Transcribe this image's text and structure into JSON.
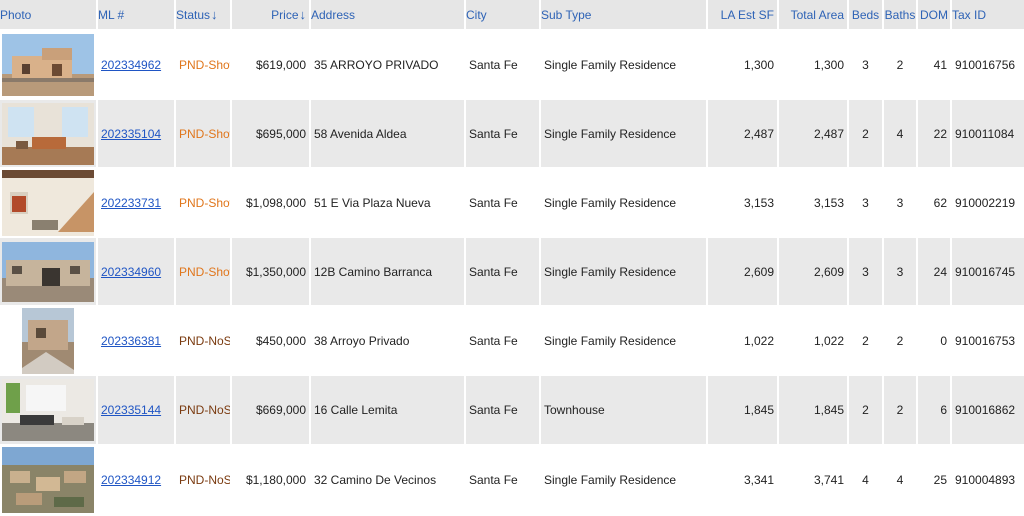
{
  "columns": {
    "photo": "Photo",
    "ml": "ML #",
    "status": "Status",
    "price": "Price",
    "address": "Address",
    "city": "City",
    "subtype": "Sub Type",
    "la_est_sf": "LA Est SF",
    "total_area": "Total Area",
    "beds": "Beds",
    "baths": "Baths",
    "dom": "DOM",
    "tax_id": "Tax ID"
  },
  "sort_icons": {
    "status": "arrow-down-icon",
    "price": "arrow-down-icon"
  },
  "colors": {
    "link": "#1f55c4",
    "status_showing": "#e0761c",
    "status_noshow": "#7a3a0f",
    "row_alt": "#e9e9e9"
  },
  "rows": [
    {
      "photo_icon": "house-photo-exterior-adobe",
      "ml": "202334962",
      "status": "PND-Show",
      "price": "$619,000",
      "address": "35 ARROYO PRIVADO",
      "city": "Santa Fe",
      "subtype": "Single Family Residence",
      "la_est_sf": "1,300",
      "total_area": "1,300",
      "beds": "3",
      "baths": "2",
      "dom": "41",
      "tax_id": "910016756"
    },
    {
      "photo_icon": "house-photo-interior-living",
      "ml": "202335104",
      "status": "PND-Show",
      "price": "$695,000",
      "address": "58 Avenida Aldea",
      "city": "Santa Fe",
      "subtype": "Single Family Residence",
      "la_est_sf": "2,487",
      "total_area": "2,487",
      "beds": "2",
      "baths": "4",
      "dom": "22",
      "tax_id": "910011084"
    },
    {
      "photo_icon": "house-photo-interior-stairs",
      "ml": "202233731",
      "status": "PND-Show",
      "price": "$1,098,000",
      "address": "51 E Via Plaza Nueva",
      "city": "Santa Fe",
      "subtype": "Single Family Residence",
      "la_est_sf": "3,153",
      "total_area": "3,153",
      "beds": "3",
      "baths": "3",
      "dom": "62",
      "tax_id": "910002219"
    },
    {
      "photo_icon": "house-photo-exterior-gate",
      "ml": "202334960",
      "status": "PND-Show",
      "price": "$1,350,000",
      "address": "12B Camino Barranca",
      "city": "Santa Fe",
      "subtype": "Single Family Residence",
      "la_est_sf": "2,609",
      "total_area": "2,609",
      "beds": "3",
      "baths": "3",
      "dom": "24",
      "tax_id": "910016745"
    },
    {
      "photo_icon": "house-photo-construction",
      "ml": "202336381",
      "status": "PND-NoShow",
      "price": "$450,000",
      "address": "38 Arroyo Privado",
      "city": "Santa Fe",
      "subtype": "Single Family Residence",
      "la_est_sf": "1,022",
      "total_area": "1,022",
      "beds": "2",
      "baths": "2",
      "dom": "0",
      "tax_id": "910016753"
    },
    {
      "photo_icon": "house-photo-interior-modern",
      "ml": "202335144",
      "status": "PND-NoShow",
      "price": "$669,000",
      "address": "16 Calle Lemita",
      "city": "Santa Fe",
      "subtype": "Townhouse",
      "la_est_sf": "1,845",
      "total_area": "1,845",
      "beds": "2",
      "baths": "2",
      "dom": "6",
      "tax_id": "910016862"
    },
    {
      "photo_icon": "house-photo-aerial",
      "ml": "202334912",
      "status": "PND-NoShow",
      "price": "$1,180,000",
      "address": "32 Camino De Vecinos",
      "city": "Santa Fe",
      "subtype": "Single Family Residence",
      "la_est_sf": "3,341",
      "total_area": "3,741",
      "beds": "4",
      "baths": "4",
      "dom": "25",
      "tax_id": "910004893"
    }
  ]
}
